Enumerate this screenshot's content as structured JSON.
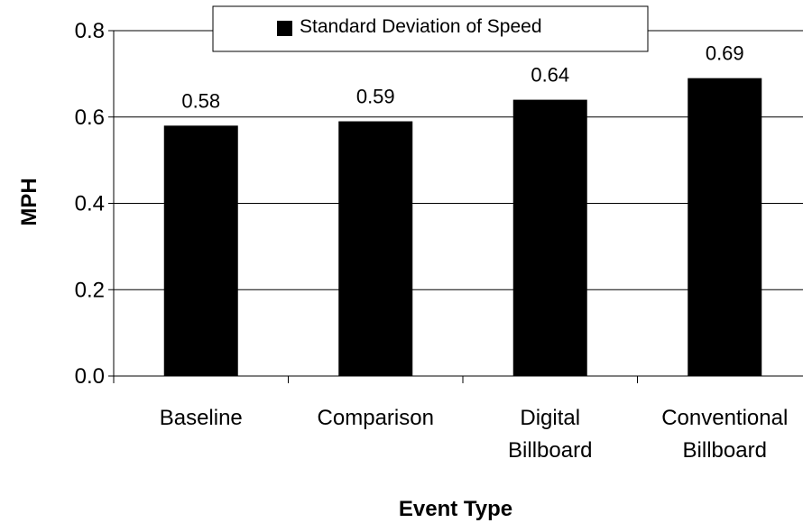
{
  "chart_data": {
    "type": "bar",
    "categories": [
      [
        "Baseline"
      ],
      [
        "Comparison"
      ],
      [
        "Digital",
        "Billboard"
      ],
      [
        "Conventional",
        "Billboard"
      ]
    ],
    "series": [
      {
        "name": "Standard Deviation of Speed",
        "values": [
          0.58,
          0.59,
          0.64,
          0.69
        ],
        "color": "#000000"
      }
    ],
    "data_labels": [
      "0.58",
      "0.59",
      "0.64",
      "0.69"
    ],
    "y_ticks": [
      "0.0",
      "0.2",
      "0.4",
      "0.6",
      "0.8"
    ],
    "ylim": [
      0,
      0.8
    ],
    "xlabel": "Event Type",
    "ylabel": "MPH",
    "grid": true,
    "legend_position": "top"
  }
}
